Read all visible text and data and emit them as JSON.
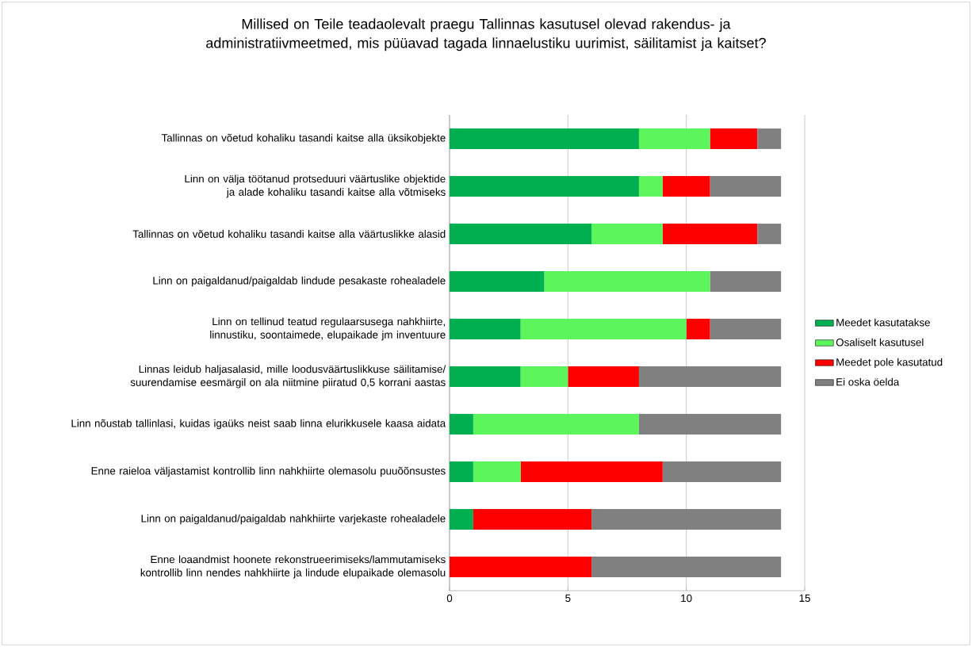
{
  "chart_data": {
    "type": "bar",
    "orientation": "horizontal",
    "stacked": true,
    "title": "Millised on Teile teadaolevalt praegu Tallinnas kasutusel olevad rakendus- ja administratiivmeetmed, mis püüavad tagada linnaelustiku uurimist, säilitamist ja kaitset?",
    "categories": [
      "Tallinnas on võetud kohaliku tasandi kaitse alla üksikobjekte",
      "Linn on välja töötanud protseduuri väärtuslike objektide ja alade kohaliku tasandi kaitse alla võtmiseks",
      "Tallinnas on võetud kohaliku tasandi kaitse alla väärtuslikke alasid",
      "Linn on paigaldanud/paigaldab lindude pesakaste rohealadele",
      "Linn on tellinud teatud regulaarsusega nahkhiirte, linnustiku, soontaimede, elupaikade jm inventuure",
      "Linnas leidub haljasalasid, mille loodusväärtuslikkuse säilitamise/ suurendamise eesmärgil on ala niitmine piiratud 0,5 korrani aastas",
      "Linn nõustab tallinlasi, kuidas igaüks neist saab linna elurikkusele kaasa aidata",
      "Enne raieloa väljastamist kontrollib linn nahkhiirte olemasolu puuõõnsustes",
      "Linn on paigaldanud/paigaldab nahkhiirte varjekaste rohealadele",
      "Enne loaandmist hoonete rekonstrueerimiseks/lammutamiseks kontrollib linn nendes nahkhiirte ja lindude elupaikade olemasolu"
    ],
    "series": [
      {
        "name": "Meedet kasutatakse",
        "color": "#00b050",
        "values": [
          8,
          8,
          6,
          4,
          3,
          3,
          1,
          1,
          1,
          0
        ]
      },
      {
        "name": "Osaliselt kasutusel",
        "color": "#5cf55c",
        "values": [
          3,
          1,
          3,
          7,
          7,
          2,
          7,
          2,
          0,
          0
        ]
      },
      {
        "name": "Meedet pole kasutatud",
        "color": "#ff0000",
        "values": [
          2,
          2,
          4,
          0,
          1,
          3,
          0,
          6,
          5,
          6
        ]
      },
      {
        "name": "Ei oska öelda",
        "color": "#808080",
        "values": [
          1,
          3,
          1,
          3,
          3,
          6,
          6,
          5,
          8,
          8
        ]
      }
    ],
    "xlim": [
      0,
      15
    ],
    "xticks": [
      0,
      5,
      10,
      15
    ],
    "grid": "x",
    "legend": "right"
  }
}
